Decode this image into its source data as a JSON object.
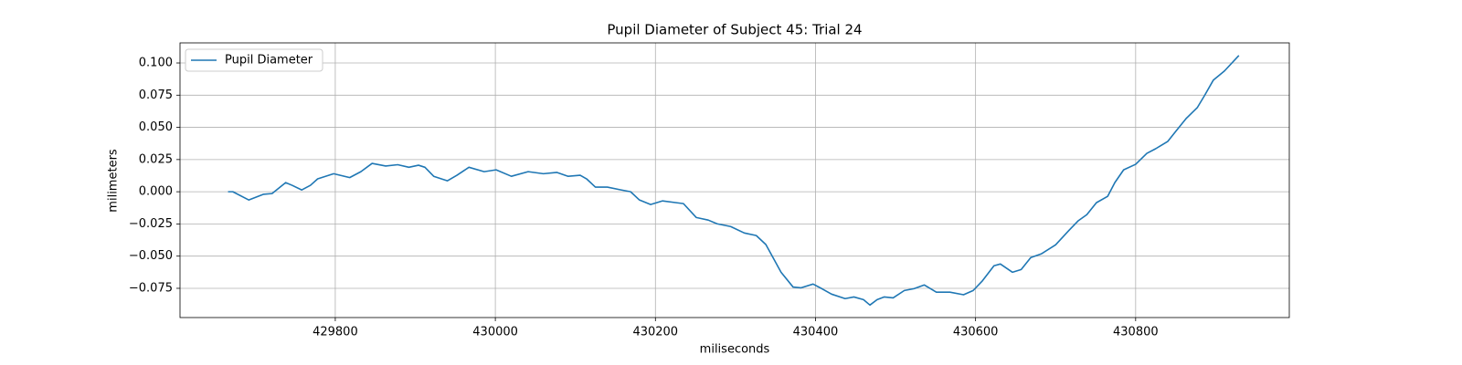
{
  "chart_data": {
    "type": "line",
    "title": "Pupil Diameter of Subject 45: Trial 24",
    "x_label": "miliseconds",
    "y_label": "milimeters",
    "x": [
      429666,
      429672,
      429692,
      429710,
      429721,
      429738,
      429746,
      429758,
      429769,
      429778,
      429798,
      429818,
      429832,
      429846,
      429863,
      429878,
      429892,
      429904,
      429912,
      429923,
      429940,
      429952,
      429967,
      429986,
      430001,
      430020,
      430041,
      430060,
      430077,
      430091,
      430106,
      430114,
      430125,
      430140,
      430157,
      430169,
      430180,
      430194,
      430209,
      430226,
      430235,
      430251,
      430266,
      430277,
      430294,
      430311,
      430326,
      430338,
      430357,
      430372,
      430382,
      430397,
      430408,
      430420,
      430437,
      430448,
      430460,
      430468,
      430477,
      430486,
      430497,
      430511,
      430523,
      430536,
      430551,
      430568,
      430585,
      430597,
      430608,
      430623,
      430631,
      430646,
      430657,
      430669,
      430682,
      430700,
      430717,
      430728,
      430739,
      430751,
      430765,
      430774,
      430785,
      430800,
      430814,
      430825,
      430840,
      430851,
      430863,
      430877,
      430886,
      430897,
      430911,
      430929
    ],
    "series": [
      {
        "name": "Pupil Diameter",
        "color": "#1f77b4",
        "values": [
          0.0,
          0.0,
          -0.0064,
          -0.002,
          -0.0014,
          0.0071,
          0.005,
          0.0014,
          0.005,
          0.01,
          0.014,
          0.011,
          0.0156,
          0.022,
          0.02,
          0.021,
          0.019,
          0.0206,
          0.019,
          0.012,
          0.0085,
          0.0128,
          0.019,
          0.0156,
          0.017,
          0.012,
          0.0156,
          0.014,
          0.015,
          0.012,
          0.0128,
          0.01,
          0.0036,
          0.0036,
          0.0014,
          0.0,
          -0.0064,
          -0.0099,
          -0.0071,
          -0.0085,
          -0.0092,
          -0.02,
          -0.022,
          -0.0249,
          -0.027,
          -0.032,
          -0.034,
          -0.041,
          -0.0625,
          -0.074,
          -0.0746,
          -0.0717,
          -0.0753,
          -0.0795,
          -0.083,
          -0.0817,
          -0.0838,
          -0.088,
          -0.0838,
          -0.0817,
          -0.0824,
          -0.0767,
          -0.0753,
          -0.0724,
          -0.078,
          -0.078,
          -0.08,
          -0.0767,
          -0.0696,
          -0.0575,
          -0.0561,
          -0.0625,
          -0.0604,
          -0.0511,
          -0.0483,
          -0.0412,
          -0.0298,
          -0.0227,
          -0.0178,
          -0.0085,
          -0.0036,
          0.0071,
          0.017,
          0.0213,
          0.0298,
          0.0334,
          0.039,
          0.0476,
          0.0568,
          0.0653,
          0.0746,
          0.0866,
          0.0938,
          0.1058
        ]
      }
    ],
    "xlim": [
      429606,
      430992
    ],
    "xticks": [
      429800,
      430000,
      430200,
      430400,
      430600,
      430800
    ],
    "ylim": [
      -0.0977,
      0.1156
    ],
    "yticks": [
      {
        "value": -0.075,
        "label": "−0.075"
      },
      {
        "value": -0.05,
        "label": "−0.050"
      },
      {
        "value": -0.025,
        "label": "−0.025"
      },
      {
        "value": 0,
        "label": "0.000"
      },
      {
        "value": 0.025,
        "label": "0.025"
      },
      {
        "value": 0.05,
        "label": "0.050"
      },
      {
        "value": 0.075,
        "label": "0.075"
      },
      {
        "value": 0.1,
        "label": "0.100"
      }
    ],
    "grid": true,
    "legend": "upper left"
  }
}
